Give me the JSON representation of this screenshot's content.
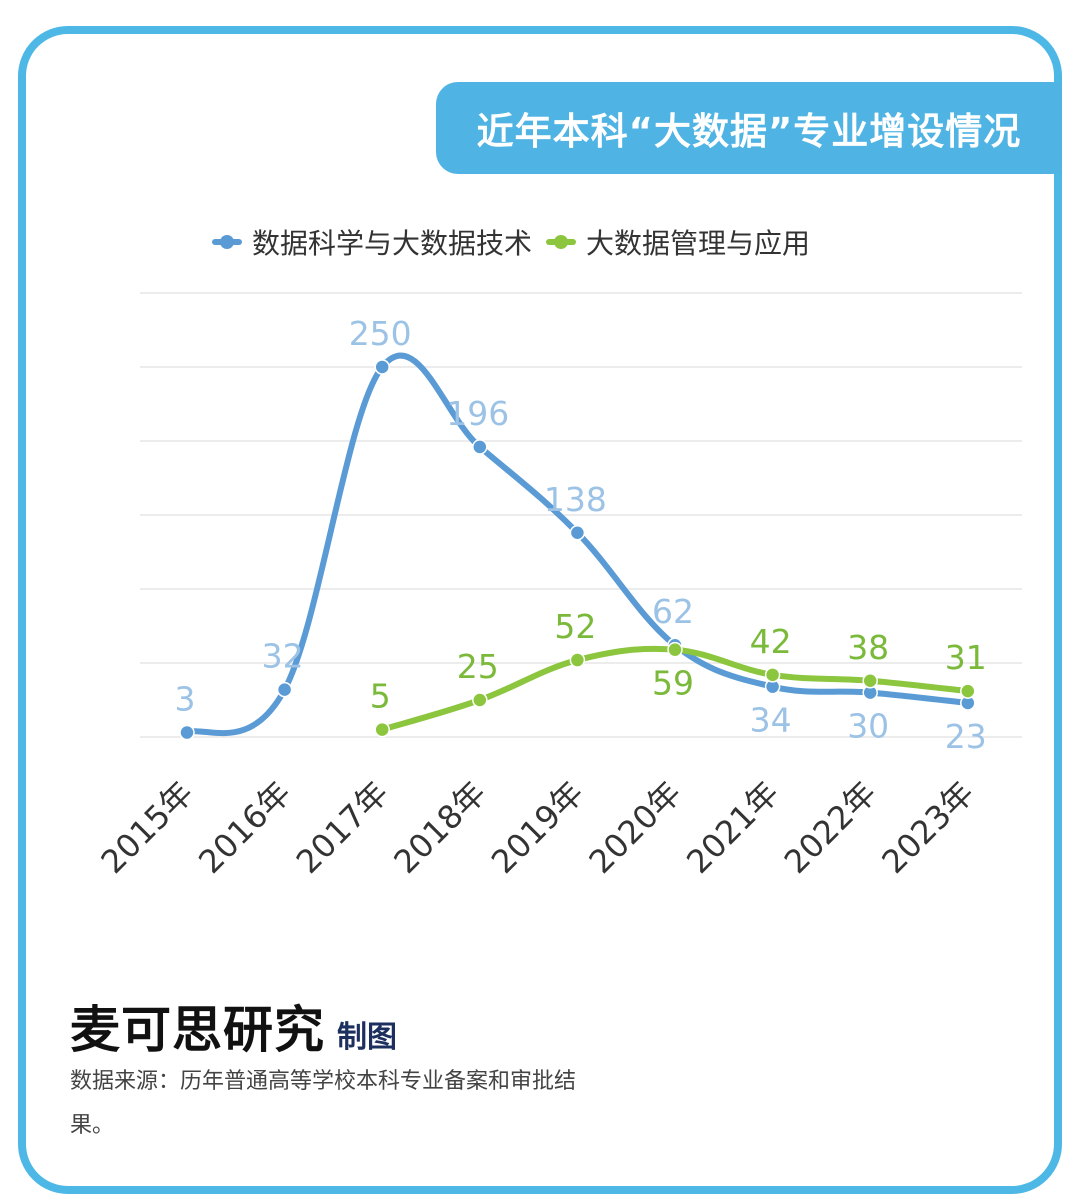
{
  "title": "近年本科“大数据”专业增设情况",
  "chart_data": {
    "type": "line",
    "categories": [
      "2015年",
      "2016年",
      "2017年",
      "2018年",
      "2019年",
      "2020年",
      "2021年",
      "2022年",
      "2023年"
    ],
    "series": [
      {
        "name": "数据科学与大数据技术",
        "color": "#5b9bd5",
        "label_color": "#9cc3e6",
        "values": [
          3,
          32,
          250,
          196,
          138,
          62,
          34,
          30,
          23
        ]
      },
      {
        "name": "大数据管理与应用",
        "color": "#8cc63f",
        "label_color": "#7ab93a",
        "values": [
          null,
          null,
          5,
          25,
          52,
          59,
          42,
          38,
          31
        ]
      }
    ],
    "ylim": [
      0,
      300
    ],
    "grid": true,
    "legend_position": "top"
  },
  "footer": {
    "brand": "麦可思研究",
    "suffix": "制图",
    "source": "数据来源：历年普通高等学校本科专业备案和审批结果。"
  }
}
